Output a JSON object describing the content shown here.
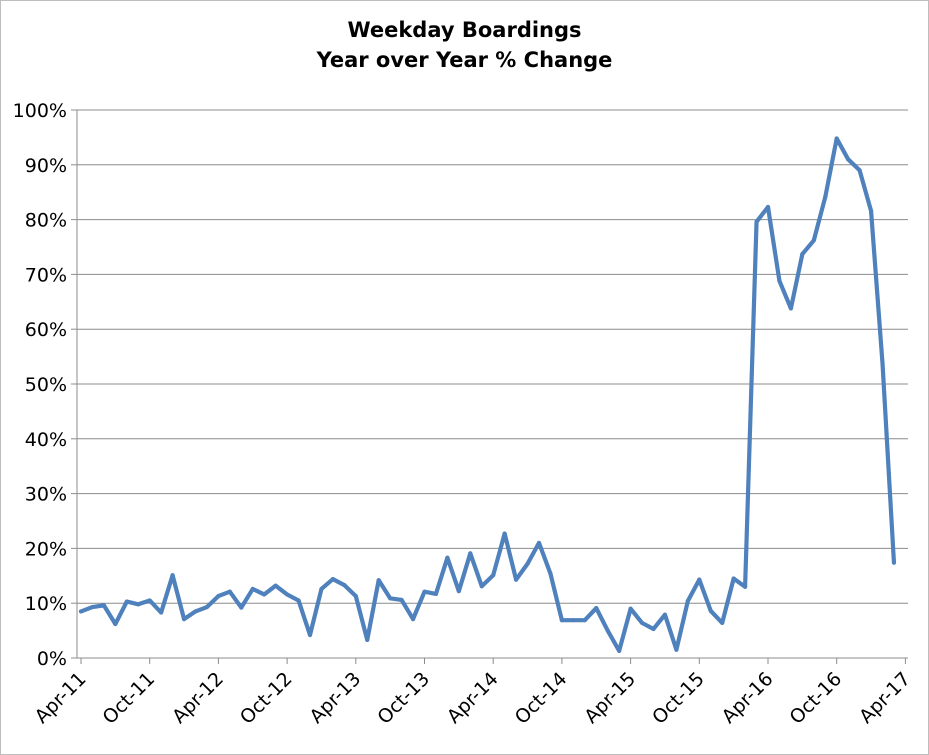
{
  "chart_data": {
    "type": "line",
    "title": "Weekday Boardings",
    "subtitle": "Year over Year % Change",
    "xlabel": "",
    "ylabel": "",
    "ylim": [
      0,
      100
    ],
    "grid": true,
    "y_ticks": [
      "0%",
      "10%",
      "20%",
      "30%",
      "40%",
      "50%",
      "60%",
      "70%",
      "80%",
      "90%",
      "100%"
    ],
    "x_ticks": [
      "Apr-11",
      "Oct-11",
      "Apr-12",
      "Oct-12",
      "Apr-13",
      "Oct-13",
      "Apr-14",
      "Oct-14",
      "Apr-15",
      "Oct-15",
      "Apr-16",
      "Oct-16",
      "Apr-17"
    ],
    "series_color": "#4F81BD",
    "series": [
      {
        "values": [
          8.5,
          9.3,
          9.6,
          6.2,
          10.3,
          9.8,
          10.5,
          8.3,
          15.1,
          7.1,
          8.5,
          9.3,
          11.3,
          12.1,
          9.2,
          12.6,
          11.6,
          13.2,
          11.6,
          10.5,
          4.2,
          12.6,
          14.4,
          13.3,
          11.3,
          3.3,
          14.2,
          10.9,
          10.6,
          7.1,
          12.1,
          11.7,
          18.3,
          12.2,
          19.1,
          13.1,
          15.1,
          22.7,
          14.3,
          17.2,
          21.0,
          15.4,
          6.9,
          6.9,
          6.9,
          9.1,
          5.0,
          1.3,
          9.0,
          6.4,
          5.3,
          7.9,
          1.5,
          10.4,
          14.3,
          8.6,
          6.4,
          14.5,
          13.0,
          79.6,
          82.3,
          68.8,
          63.8,
          73.7,
          76.2,
          84.1,
          94.8,
          91.0,
          89.0,
          81.6,
          53.8,
          17.4
        ]
      }
    ]
  }
}
